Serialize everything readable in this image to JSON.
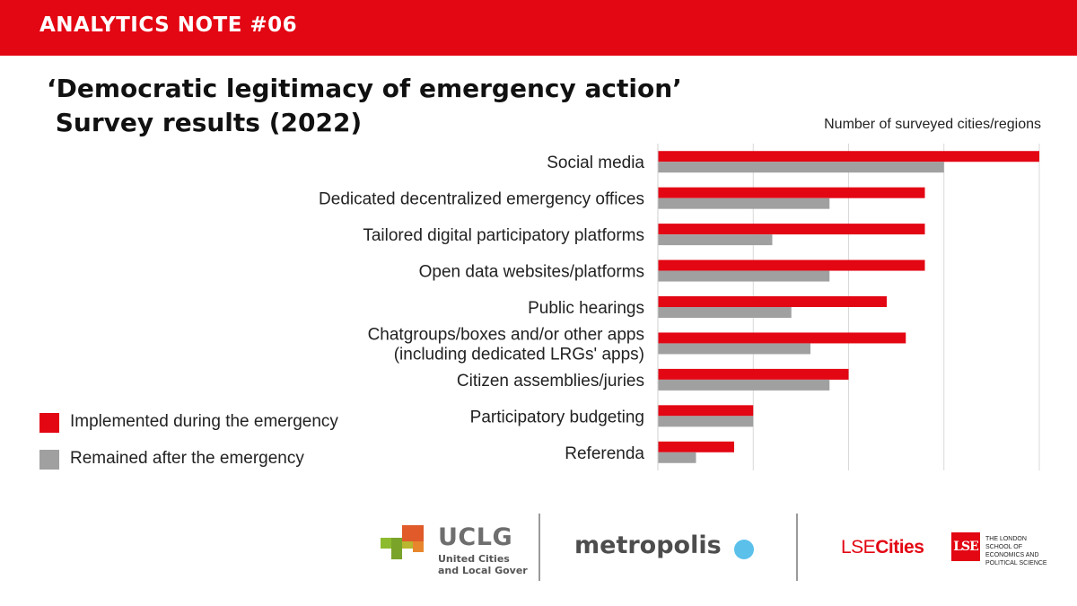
{
  "header": {
    "note_label": "ANALYTICS NOTE #06"
  },
  "title_line1": "‘Democratic legitimacy of emergency action’",
  "title_line2": " Survey results (2022)",
  "legend": [
    {
      "label": "Implemented during the emergency",
      "color": "#e30613"
    },
    {
      "label": "Remained after the emergency",
      "color": "#a0a0a0"
    }
  ],
  "chart_data": {
    "type": "bar",
    "orientation": "horizontal",
    "title": "",
    "axis_title": "Number of surveyed cities/regions",
    "categories": [
      "Social media",
      "Dedicated decentralized emergency offices",
      "Tailored digital participatory platforms",
      "Open data websites/platforms",
      "Public hearings",
      "Chatgroups/boxes and/or other apps (including dedicated LRGs' apps)",
      "Citizen assemblies/juries",
      "Participatory budgeting",
      "Referenda"
    ],
    "category_lines": [
      [
        "Social media"
      ],
      [
        "Dedicated decentralized emergency offices"
      ],
      [
        "Tailored digital participatory platforms"
      ],
      [
        "Open data websites/platforms"
      ],
      [
        "Public hearings"
      ],
      [
        "Chatgroups/boxes and/or other apps",
        "(including dedicated LRGs' apps)"
      ],
      [
        "Citizen assemblies/juries"
      ],
      [
        "Participatory budgeting"
      ],
      [
        "Referenda"
      ]
    ],
    "series": [
      {
        "name": "Implemented during the emergency",
        "color": "#e30613",
        "values": [
          20,
          14,
          14,
          14,
          12,
          13,
          10,
          5,
          4
        ]
      },
      {
        "name": "Remained after the emergency",
        "color": "#a0a0a0",
        "values": [
          15,
          9,
          6,
          9,
          7,
          8,
          9,
          5,
          2
        ]
      }
    ],
    "xlim": [
      0,
      20
    ],
    "gridlines": [
      0,
      5,
      10,
      15,
      20
    ],
    "tick_labels_shown": false,
    "grid": true
  },
  "footer": {
    "uclg_name": "UCLG",
    "uclg_sub": "United Cities and Local Gover",
    "metropolis": "metropolis",
    "lsecities_light": "LSE",
    "lsecities_bold": "Cities",
    "lse_box": "LSE",
    "lse_text": "The London School of Economics and Political Science"
  }
}
